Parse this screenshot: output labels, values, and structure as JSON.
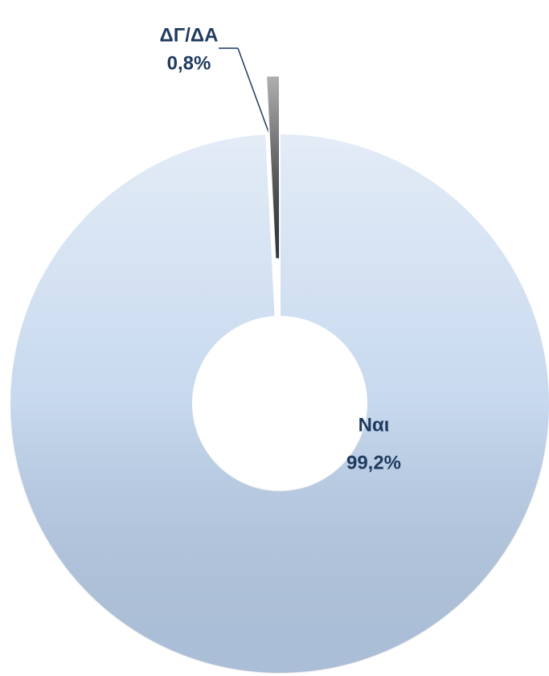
{
  "chart_data": {
    "type": "donut",
    "categories": [
      "Ναι",
      "ΔΓ/ΔΑ"
    ],
    "values": [
      99.2,
      0.8
    ],
    "value_labels": [
      "99,2%",
      "0,8%"
    ],
    "colors": [
      "#b9cfea",
      "#3a3a3a"
    ]
  }
}
